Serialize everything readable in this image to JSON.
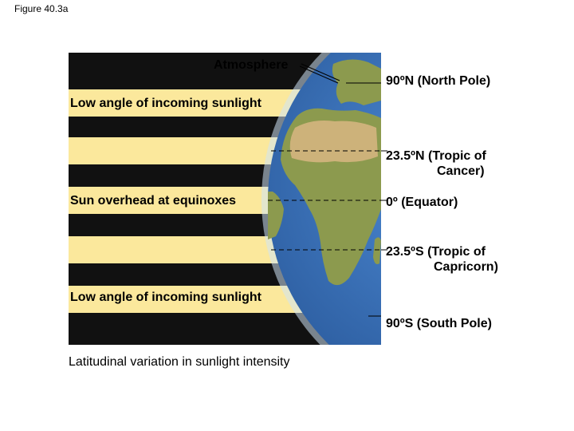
{
  "figure_label": "Figure 40.3a",
  "labels": {
    "atmosphere": "Atmosphere",
    "north_pole": "90ºN (North Pole)",
    "cancer_line1": "23.5ºN (Tropic of",
    "cancer_line2": "Cancer)",
    "equator": "0º (Equator)",
    "capricorn_line1": "23.5ºS (Tropic of",
    "capricorn_line2": "Capricorn)",
    "south_pole": "90ºS (South Pole)",
    "low_angle_top": "Low angle of incoming sunlight",
    "sun_overhead": "Sun overhead at equinoxes",
    "low_angle_bottom": "Low angle of incoming sunlight",
    "caption": "Latitudinal variation in sunlight intensity"
  },
  "colors": {
    "sunlight_band": "#fbe89c",
    "space": "#111111",
    "ocean": "#3f79c4",
    "atmosphere": "#cfe3f5",
    "land": "#8c9a4e",
    "sahara": "#cdb27a"
  }
}
